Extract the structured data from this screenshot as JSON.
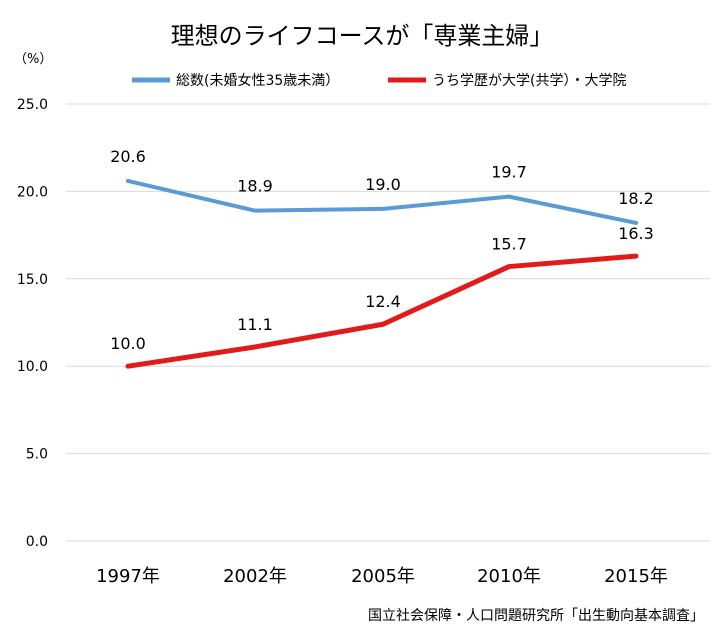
{
  "chart_data": {
    "type": "line",
    "title": "理想のライフコースが「専業主婦」",
    "unit_label": "（%）",
    "categories": [
      "1997年",
      "2002年",
      "2005年",
      "2010年",
      "2015年"
    ],
    "series": [
      {
        "name": "総数(未婚女性35歳未満）",
        "color": "#5B9BD5",
        "values": [
          20.6,
          18.9,
          19.0,
          19.7,
          18.2
        ],
        "labels": [
          "20.6",
          "18.9",
          "19.0",
          "19.7",
          "18.2"
        ]
      },
      {
        "name": "うち学歴が大学(共学）・大学院",
        "color": "#E31A1A",
        "values": [
          10.0,
          11.1,
          12.4,
          15.7,
          16.3
        ],
        "labels": [
          "10.0",
          "11.1",
          "12.4",
          "15.7",
          "16.3"
        ]
      }
    ],
    "yticks": [
      "0.0",
      "5.0",
      "10.0",
      "15.0",
      "20.0",
      "25.0"
    ],
    "ylim": [
      0,
      25
    ],
    "grid": true,
    "legend_position": "top",
    "source": "国立社会保障・人口問題研究所「出生動向基本調査」"
  }
}
